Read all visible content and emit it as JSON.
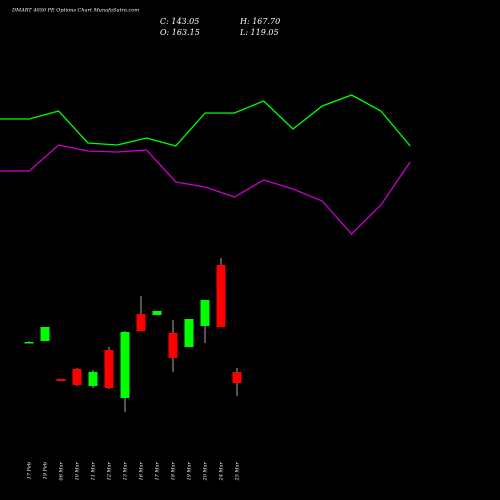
{
  "chart_data": {
    "type": "candlestick",
    "title": "DMART 4050  PE Options  Chart MunafaSutra.com",
    "close_text": "C: 143.05",
    "high_text": "H: 167.70",
    "open_text": "O: 163.15",
    "low_text": "L: 119.05",
    "categories": [
      "17 Feb",
      "19 Feb",
      "06 Mar",
      "10 Mar",
      "11 Mar",
      "12 Mar",
      "13 Mar",
      "16 Mar",
      "17 Mar",
      "18 Mar",
      "19 Mar",
      "20 Mar",
      "24 Mar",
      "25 Mar"
    ],
    "open": [
      157,
      159,
      121,
      131,
      114,
      150,
      102,
      186,
      185,
      167,
      153,
      174,
      235,
      128
    ],
    "high": [
      159,
      173,
      121,
      132,
      130,
      153,
      169,
      204,
      189,
      180,
      181,
      200,
      242,
      132
    ],
    "low": [
      157,
      159,
      119,
      114,
      112,
      111,
      88,
      169,
      185,
      128,
      153,
      157,
      173,
      104
    ],
    "close": [
      158,
      173,
      119,
      115,
      128,
      112,
      168,
      169,
      189,
      142,
      181,
      200,
      173,
      117
    ],
    "up_color": "#00ff00",
    "down_color": "#ff0000",
    "wick_color": "#aaaaaa",
    "ylim": [
      0,
      500
    ],
    "lines": [
      {
        "color": "#00ff00",
        "x": [
          0,
          1,
          2,
          3,
          4,
          5,
          6,
          7,
          8,
          9,
          10,
          11,
          12,
          13,
          14
        ],
        "values": [
          381,
          381,
          389,
          357,
          355,
          362,
          354,
          387,
          387,
          399,
          371,
          394,
          405,
          389,
          354
        ]
      },
      {
        "color": "#cc00cc",
        "x": [
          0,
          1,
          2,
          3,
          4,
          5,
          6,
          7,
          8,
          9,
          10,
          11,
          12,
          13,
          14
        ],
        "values": [
          329,
          329,
          355,
          349,
          348,
          350,
          318,
          313,
          303,
          320,
          311,
          299,
          266,
          295,
          338
        ]
      }
    ]
  }
}
